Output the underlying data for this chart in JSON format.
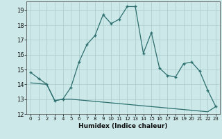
{
  "title": "",
  "xlabel": "Humidex (Indice chaleur)",
  "x_values": [
    0,
    1,
    2,
    3,
    4,
    5,
    6,
    7,
    8,
    9,
    10,
    11,
    12,
    13,
    14,
    15,
    16,
    17,
    18,
    19,
    20,
    21,
    22,
    23
  ],
  "line1_y": [
    14.8,
    14.4,
    14.0,
    12.9,
    13.0,
    13.8,
    15.5,
    16.7,
    17.3,
    18.7,
    18.1,
    18.4,
    19.25,
    19.25,
    16.1,
    17.5,
    15.1,
    14.6,
    14.5,
    15.4,
    15.5,
    14.9,
    13.6,
    12.5
  ],
  "line2_y": [
    14.1,
    14.05,
    14.0,
    12.9,
    13.0,
    13.0,
    12.95,
    12.9,
    12.85,
    12.8,
    12.75,
    12.7,
    12.65,
    12.6,
    12.55,
    12.5,
    12.45,
    12.4,
    12.35,
    12.3,
    12.25,
    12.2,
    12.15,
    12.5
  ],
  "line_color": "#2d6e6e",
  "bg_color": "#cce8e8",
  "grid_color": "#aacccc",
  "ylim": [
    12,
    19.6
  ],
  "xlim": [
    -0.5,
    23.5
  ],
  "yticks": [
    12,
    13,
    14,
    15,
    16,
    17,
    18,
    19
  ],
  "xtick_labels": [
    "0",
    "1",
    "2",
    "3",
    "4",
    "5",
    "6",
    "7",
    "8",
    "9",
    "10",
    "11",
    "12",
    "13",
    "14",
    "15",
    "16",
    "17",
    "18",
    "19",
    "20",
    "21",
    "22",
    "23"
  ]
}
